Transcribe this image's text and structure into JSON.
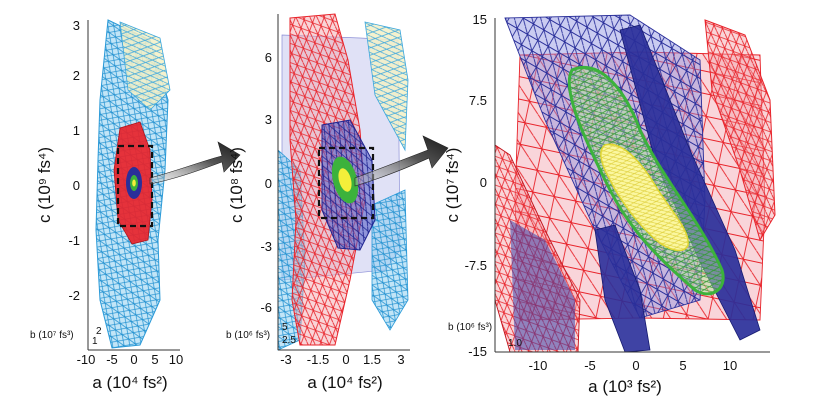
{
  "figure": {
    "panels": [
      {
        "id": "left",
        "y_title": "c (10⁹ fs⁴)",
        "x_title": "a (10⁴ fs²)",
        "b_label": "b (10⁷ fs³)",
        "b_ticks": [
          "2",
          "1"
        ],
        "y_ticks": [
          "3",
          "2",
          "1",
          "0",
          "-1",
          "-2"
        ],
        "x_ticks": [
          "-10",
          "-5",
          "0",
          "5",
          "10"
        ]
      },
      {
        "id": "middle",
        "y_title": "c (10⁸ fs⁴)",
        "x_title": "a (10⁴ fs²)",
        "b_label": "b (10⁶ fs³)",
        "b_ticks": [
          "5",
          "2.5"
        ],
        "y_ticks": [
          "6",
          "3",
          "0",
          "-3",
          "-6"
        ],
        "x_ticks": [
          "-3",
          "-1.5",
          "0",
          "1.5",
          "3"
        ]
      },
      {
        "id": "right",
        "y_title": "c (10⁷ fs⁴)",
        "x_title": "a (10³ fs²)",
        "b_label": "b (10⁶ fs³)",
        "b_ticks": [
          "1.0"
        ],
        "y_ticks": [
          "15",
          "7.5",
          "0",
          "-7.5",
          "-15"
        ],
        "x_ticks": [
          "-10",
          "-5",
          "0",
          "5",
          "10"
        ]
      }
    ],
    "colors": {
      "red_surface": "#e8232a",
      "blue_surface": "#2a2f9a",
      "cyan_surface": "#3aa6dd",
      "green_contour": "#3cb23c",
      "yellow_core": "#f4ef3a",
      "arrow": "#2b2b2b"
    }
  }
}
